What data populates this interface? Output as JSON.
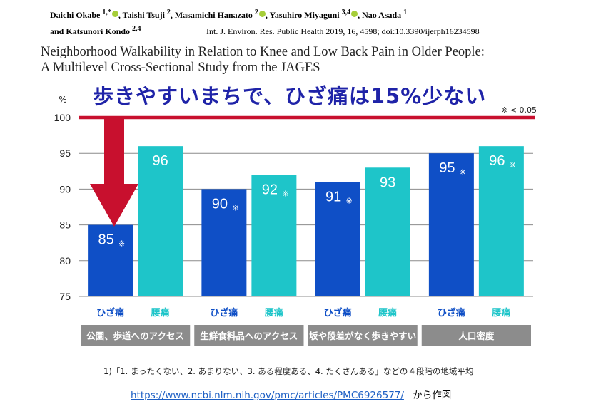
{
  "header": {
    "authors_line1": [
      {
        "name": "Daichi Okabe",
        "sup": "1,*",
        "orcid": true
      },
      {
        "name": "Taishi Tsuji",
        "sup": "2",
        "orcid": false
      },
      {
        "name": "Masamichi Hanazato",
        "sup": "2",
        "orcid": true
      },
      {
        "name": "Yasuhiro Miyaguni",
        "sup": "3,4",
        "orcid": true
      },
      {
        "name": "Nao Asada",
        "sup": "1",
        "orcid": false
      }
    ],
    "authors_line2": {
      "prefix": "and Katsunori Kondo",
      "sup": "2,4"
    },
    "journal": "Int. J. Environ. Res. Public Health 2019, 16, 4598; doi:10.3390/ijerph16234598",
    "title_line1": "Neighborhood Walkability in Relation to Knee and Low Back Pain in Older People:",
    "title_line2": "A Multilevel Cross-Sectional Study from the JAGES"
  },
  "headline": "歩きやすいまちで、ひざ痛は15%少ない",
  "significance_note": "※ < 0.05",
  "chart_data": {
    "type": "bar",
    "ylabel": "%",
    "ylim": [
      75,
      100
    ],
    "yticks": [
      75,
      80,
      85,
      90,
      95,
      100
    ],
    "grid": true,
    "reference_line": 100,
    "categories": [
      "公園、歩道へのアクセス",
      "生鮮食料品へのアクセス",
      "坂や段差がなく歩きやすい",
      "人口密度"
    ],
    "series": [
      {
        "name": "ひざ痛",
        "color": "#0f4fc6",
        "values": [
          85,
          90,
          91,
          95
        ],
        "significant": [
          true,
          true,
          true,
          true
        ]
      },
      {
        "name": "腰痛",
        "color": "#1ec5c9",
        "values": [
          96,
          92,
          93,
          96
        ],
        "significant": [
          false,
          true,
          false,
          true
        ]
      }
    ],
    "significance_marker": "※"
  },
  "footnote": "1)「1. まったくない、2. あまりない、3. ある程度ある、4. たくさんある」などの４段階の地域平均",
  "source": {
    "url": "https://www.ncbi.nlm.nih.gov/pmc/articles/PMC6926577/",
    "suffix": "から作図"
  }
}
